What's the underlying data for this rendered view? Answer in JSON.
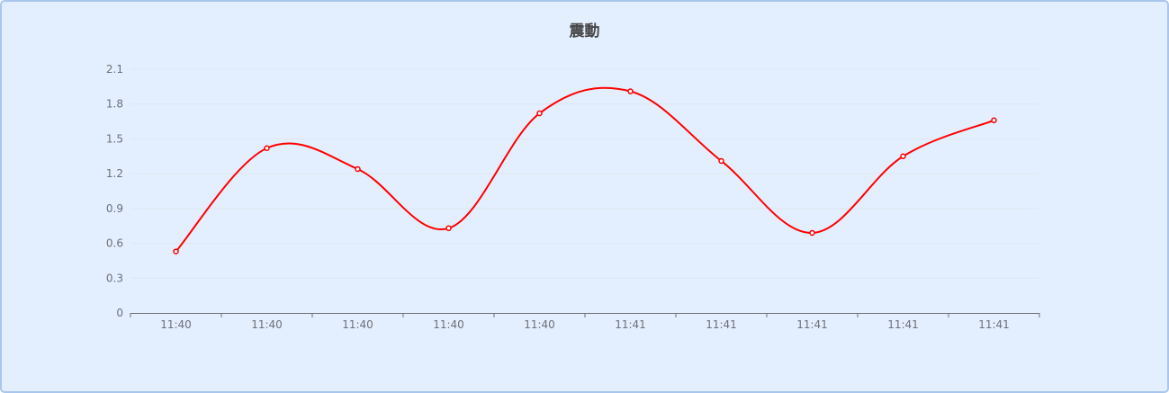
{
  "chart_data": {
    "type": "line",
    "title": "震動",
    "categories": [
      "11:40",
      "11:40",
      "11:40",
      "11:40",
      "11:40",
      "11:41",
      "11:41",
      "11:41",
      "11:41",
      "11:41"
    ],
    "series": [
      {
        "values": [
          0.53,
          1.42,
          1.24,
          0.73,
          1.72,
          1.91,
          1.31,
          0.69,
          1.35,
          1.66
        ]
      }
    ],
    "yticks": [
      "0",
      "0.3",
      "0.6",
      "0.9",
      "1.2",
      "1.5",
      "1.8",
      "2.1"
    ],
    "ylim": [
      0,
      2.1
    ],
    "grid": true,
    "smooth": true,
    "colors": {
      "line": "#ff0000",
      "grid": "#e0e6f1",
      "axis": "#6e7079"
    }
  }
}
